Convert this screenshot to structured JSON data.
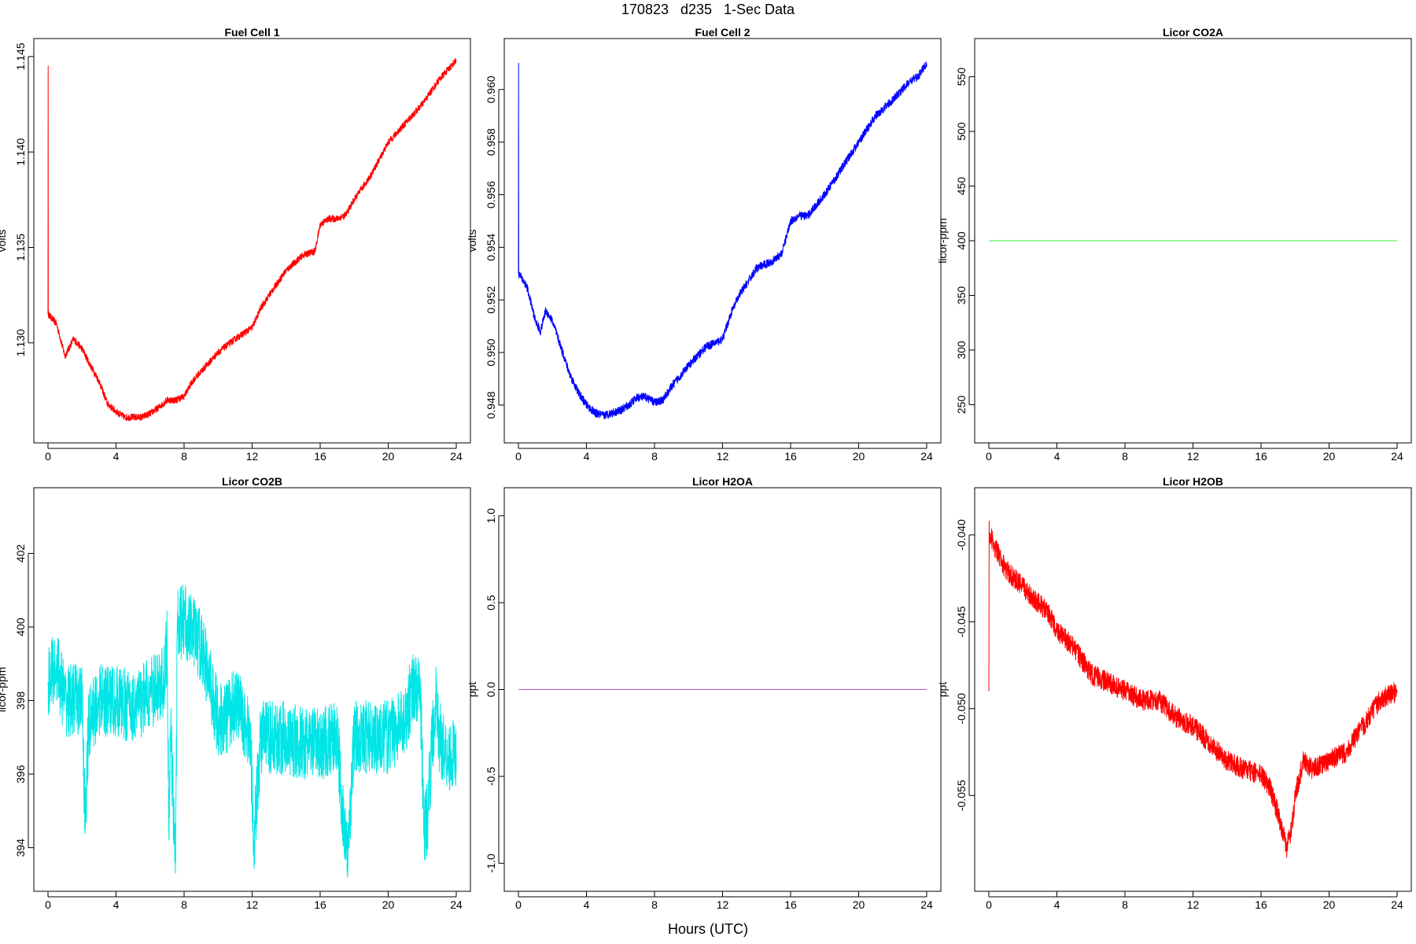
{
  "title": "170823   d235   1-Sec Data",
  "xlabel": "Hours (UTC)",
  "chart_data": [
    {
      "type": "line",
      "title": "Fuel Cell 1",
      "ylabel": "volts",
      "color": "#ff0000",
      "xlim": [
        0,
        24
      ],
      "ylim": [
        1.1255,
        1.1452
      ],
      "xticks": [
        0,
        4,
        8,
        12,
        16,
        20,
        24
      ],
      "yticks": [
        1.13,
        1.135,
        1.14,
        1.145
      ],
      "ytick_labels": [
        "1.130",
        "1.135",
        "1.140",
        "1.145"
      ],
      "noise": 0.00018,
      "x": [
        0,
        0.01,
        0.02,
        0.5,
        1.0,
        1.5,
        2.0,
        2.5,
        3.0,
        3.5,
        4.0,
        4.5,
        5.0,
        5.5,
        6.0,
        6.5,
        7.0,
        7.5,
        8.0,
        8.5,
        9.0,
        10.0,
        11.0,
        12.0,
        12.5,
        13.0,
        14.0,
        15.0,
        15.7,
        16.0,
        16.5,
        17.0,
        17.5,
        18.0,
        19.0,
        20.0,
        21.0,
        22.0,
        23.0,
        24.0
      ],
      "y": [
        1.1315,
        1.1445,
        1.1315,
        1.131,
        1.1293,
        1.1302,
        1.1297,
        1.1288,
        1.128,
        1.1268,
        1.1264,
        1.1261,
        1.1261,
        1.1261,
        1.1263,
        1.1266,
        1.127,
        1.127,
        1.1272,
        1.128,
        1.1285,
        1.1295,
        1.1302,
        1.1308,
        1.1318,
        1.1325,
        1.1338,
        1.1346,
        1.1348,
        1.1362,
        1.1365,
        1.1365,
        1.1367,
        1.1375,
        1.1388,
        1.1405,
        1.1415,
        1.1425,
        1.1438,
        1.1448
      ]
    },
    {
      "type": "line",
      "title": "Fuel Cell 2",
      "ylabel": "volts",
      "color": "#0000ff",
      "xlim": [
        0,
        24
      ],
      "ylim": [
        0.9471,
        0.9614
      ],
      "xticks": [
        0,
        4,
        8,
        12,
        16,
        20,
        24
      ],
      "yticks": [
        0.948,
        0.95,
        0.952,
        0.954,
        0.956,
        0.958,
        0.96
      ],
      "ytick_labels": [
        "0.948",
        "0.950",
        "0.952",
        "0.954",
        "0.956",
        "0.958",
        "0.960"
      ],
      "noise": 0.00016,
      "x": [
        0,
        0.01,
        0.02,
        0.5,
        1.0,
        1.3,
        1.6,
        2.0,
        2.5,
        3.0,
        3.5,
        4.0,
        4.5,
        5.0,
        5.5,
        6.0,
        6.5,
        7.0,
        7.5,
        8.0,
        8.5,
        9.0,
        10.0,
        11.0,
        12.0,
        12.5,
        13.0,
        14.0,
        15.0,
        15.5,
        16.0,
        16.5,
        17.0,
        18.0,
        19.0,
        20.0,
        21.0,
        22.0,
        23.0,
        23.5,
        24.0
      ],
      "y": [
        0.953,
        0.961,
        0.953,
        0.9525,
        0.9512,
        0.9508,
        0.9516,
        0.9512,
        0.9502,
        0.9492,
        0.9485,
        0.948,
        0.9477,
        0.9476,
        0.9477,
        0.9478,
        0.948,
        0.9483,
        0.9483,
        0.9481,
        0.9482,
        0.9487,
        0.9495,
        0.9502,
        0.9505,
        0.9515,
        0.9522,
        0.9532,
        0.9535,
        0.9538,
        0.955,
        0.9552,
        0.9552,
        0.956,
        0.957,
        0.958,
        0.959,
        0.9596,
        0.9603,
        0.9605,
        0.961
      ]
    },
    {
      "type": "line",
      "title": "Licor CO2A",
      "ylabel": "licor-ppm",
      "color": "#33ee33",
      "xlim": [
        0,
        24
      ],
      "ylim": [
        228,
        572
      ],
      "xticks": [
        0,
        4,
        8,
        12,
        16,
        20,
        24
      ],
      "yticks": [
        250,
        300,
        350,
        400,
        450,
        500,
        550
      ],
      "ytick_labels": [
        "250",
        "300",
        "350",
        "400",
        "450",
        "500",
        "550"
      ],
      "noise": 0,
      "x": [
        0,
        24
      ],
      "y": [
        400,
        400
      ]
    },
    {
      "type": "line",
      "title": "Licor CO2B",
      "ylabel": "licor-ppm",
      "color": "#00e5e5",
      "xlim": [
        0,
        24
      ],
      "ylim": [
        393.2,
        403.4
      ],
      "xticks": [
        0,
        4,
        8,
        12,
        16,
        20,
        24
      ],
      "yticks": [
        394,
        396,
        398,
        400,
        402
      ],
      "ytick_labels": [
        "394",
        "396",
        "398",
        "400",
        "402"
      ],
      "noise": 1.0,
      "x": [
        0,
        0.5,
        1.0,
        2.0,
        2.2,
        2.3,
        2.4,
        2.5,
        3.0,
        4.0,
        5.0,
        6.0,
        6.8,
        7.0,
        7.1,
        7.2,
        7.5,
        7.6,
        8.0,
        9.0,
        10.0,
        10.5,
        11.0,
        11.5,
        11.9,
        12.1,
        12.3,
        12.5,
        13.0,
        14.0,
        15.0,
        16.0,
        17.0,
        17.4,
        17.6,
        18.0,
        19.0,
        20.0,
        21.0,
        21.5,
        21.9,
        22.1,
        22.3,
        22.6,
        22.8,
        23.0,
        23.5,
        24.0
      ],
      "y": [
        398.5,
        399.0,
        398.0,
        398.0,
        394.5,
        396.3,
        397.3,
        397.5,
        398.0,
        398.0,
        397.8,
        398.2,
        398.5,
        399.5,
        394.5,
        397.2,
        393.7,
        400.0,
        400.2,
        399.5,
        397.5,
        397.5,
        398.0,
        397.5,
        397.0,
        394.2,
        395.5,
        397.0,
        397.0,
        397.0,
        396.8,
        396.8,
        397.0,
        394.5,
        393.7,
        397.0,
        397.0,
        397.0,
        397.5,
        398.5,
        398.0,
        394.5,
        394.8,
        397.0,
        398.0,
        397.0,
        396.5,
        396.5
      ]
    },
    {
      "type": "line",
      "title": "Licor H2OA",
      "ylabel": "ppt",
      "color": "#cc55cc",
      "xlim": [
        0,
        24
      ],
      "ylim": [
        -1.08,
        1.08
      ],
      "xticks": [
        0,
        4,
        8,
        12,
        16,
        20,
        24
      ],
      "yticks": [
        -1.0,
        -0.5,
        0.0,
        0.5,
        1.0
      ],
      "ytick_labels": [
        "-1.0",
        "-0.5",
        "0.0",
        "0.5",
        "1.0"
      ],
      "noise": 0,
      "x": [
        0,
        24
      ],
      "y": [
        0,
        0
      ]
    },
    {
      "type": "line",
      "title": "Licor H2OB",
      "ylabel": "ppt",
      "color": "#ff0000",
      "xlim": [
        0,
        24
      ],
      "ylim": [
        -0.0597,
        -0.0381
      ],
      "xticks": [
        0,
        4,
        8,
        12,
        16,
        20,
        24
      ],
      "yticks": [
        -0.055,
        -0.05,
        -0.045,
        -0.04
      ],
      "ytick_labels": [
        "-0.055",
        "-0.050",
        "-0.045",
        "-0.040"
      ],
      "noise": 0.0006,
      "x": [
        0,
        0.02,
        0.05,
        0.5,
        1.0,
        1.5,
        2.0,
        2.5,
        3.0,
        3.5,
        4.0,
        5.0,
        6.0,
        7.0,
        8.0,
        9.0,
        10.0,
        11.0,
        12.0,
        13.0,
        14.0,
        15.0,
        16.0,
        16.5,
        17.0,
        17.5,
        17.8,
        18.0,
        18.5,
        19.0,
        20.0,
        21.0,
        22.0,
        23.0,
        24.0
      ],
      "y": [
        -0.049,
        -0.0392,
        -0.04,
        -0.041,
        -0.042,
        -0.0425,
        -0.043,
        -0.0435,
        -0.044,
        -0.0445,
        -0.0455,
        -0.0465,
        -0.048,
        -0.0485,
        -0.049,
        -0.0495,
        -0.0495,
        -0.0505,
        -0.051,
        -0.052,
        -0.053,
        -0.0535,
        -0.0538,
        -0.0545,
        -0.056,
        -0.058,
        -0.057,
        -0.055,
        -0.053,
        -0.0535,
        -0.053,
        -0.0525,
        -0.051,
        -0.0495,
        -0.049
      ]
    }
  ]
}
